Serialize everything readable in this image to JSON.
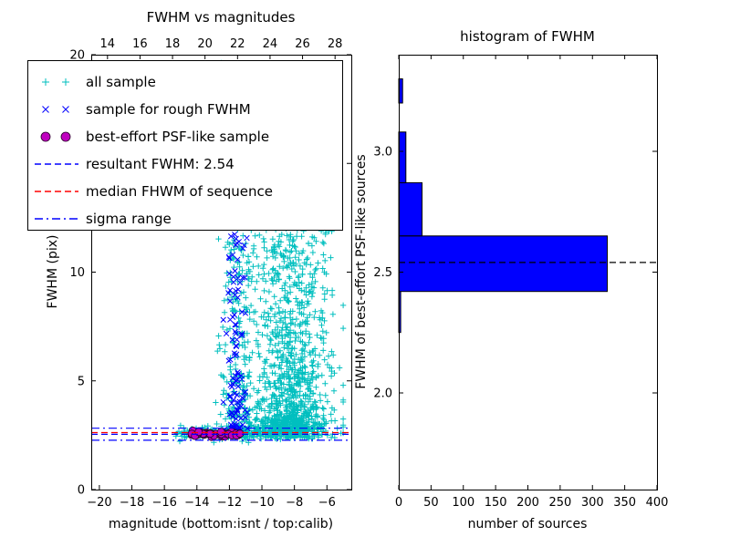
{
  "figure": {
    "background": "#ffffff"
  },
  "chart_data": [
    {
      "type": "scatter",
      "title": "FWHM vs magnitudes",
      "xlabel": "magnitude (bottom:isnt / top:calib)",
      "ylabel": "FWHM (pix)",
      "xlim": [
        -20.5,
        -4.5
      ],
      "ylim": [
        0,
        20
      ],
      "grid": false,
      "xticks": {
        "values": [
          -20,
          -18,
          -16,
          -14,
          -12,
          -10,
          -8,
          -6
        ],
        "labels": [
          "−20",
          "−18",
          "−16",
          "−14",
          "−12",
          "−10",
          "−8",
          "−6"
        ]
      },
      "yticks": {
        "values": [
          0,
          5,
          10,
          15,
          20
        ],
        "labels": [
          "0",
          "5",
          "10",
          "15",
          "20"
        ]
      },
      "top_axis": {
        "lim": [
          13,
          29
        ],
        "ticks": {
          "values": [
            14,
            16,
            18,
            20,
            22,
            24,
            26,
            28
          ],
          "labels": [
            "14",
            "16",
            "18",
            "20",
            "22",
            "24",
            "26",
            "28"
          ]
        }
      },
      "series": [
        {
          "id": "all-sample",
          "name": "all sample",
          "marker": "plus",
          "color": "#00bfbf",
          "clusters": [
            {
              "n": 1400,
              "mag": {
                "dist": "normal",
                "mu": -8.3,
                "sigma": 1.25,
                "clip": [
                  -11.4,
                  -5.0
                ]
              },
              "fwhm": {
                "dist": "powertail",
                "base": 2.3,
                "scale": 15,
                "exp": 2.8,
                "jitter": 0.45,
                "max": 19.8
              }
            },
            {
              "n": 260,
              "mag": {
                "dist": "normal",
                "mu": -11.6,
                "sigma": 0.5,
                "clip": [
                  -13.3,
                  -10.5
                ]
              },
              "fwhm": {
                "dist": "powertail",
                "base": 2.35,
                "scale": 13,
                "exp": 2.0,
                "jitter": 0.3,
                "max": 19.5
              }
            },
            {
              "n": 130,
              "mag": {
                "dist": "uniform",
                "lo": -15.3,
                "hi": -10.3
              },
              "fwhm": {
                "dist": "normal",
                "mu": 2.6,
                "sigma": 0.18,
                "clip": [
                  2.15,
                  3.2
                ]
              }
            },
            {
              "n": 70,
              "mag": {
                "dist": "uniform",
                "lo": -12.6,
                "hi": -5.4
              },
              "fwhm": {
                "dist": "uniform",
                "lo": 9.5,
                "hi": 19.8
              }
            }
          ]
        },
        {
          "id": "rough-fwhm",
          "name": "sample for rough FWHM",
          "marker": "x",
          "color": "#0000ff",
          "clusters": [
            {
              "n": 120,
              "mag": {
                "dist": "normal",
                "mu": -11.6,
                "sigma": 0.33,
                "clip": [
                  -12.7,
                  -10.8
                ]
              },
              "fwhm": {
                "dist": "powertail",
                "base": 2.5,
                "scale": 10.5,
                "exp": 2.1,
                "jitter": 0.25,
                "max": 12.8
              }
            }
          ]
        },
        {
          "id": "psf-like",
          "name": "best-effort PSF-like sample",
          "marker": "circle",
          "color": "#bf00bf",
          "edge": "#2a002a",
          "clusters": [
            {
              "n": 55,
              "mag": {
                "dist": "uniform",
                "lo": -14.35,
                "hi": -11.3
              },
              "fwhm": {
                "dist": "normal",
                "mu": 2.56,
                "sigma": 0.06,
                "clip": [
                  2.42,
                  2.72
                ]
              }
            }
          ]
        }
      ],
      "ref_lines": [
        {
          "id": "resultant-fwhm",
          "label": "resultant FWHM: 2.54",
          "y": 2.54,
          "color": "#0000ff",
          "style": "dashed"
        },
        {
          "id": "median-fwhm",
          "label": "median FHWM of sequence",
          "y": 2.62,
          "color": "#ff0000",
          "style": "dashed"
        },
        {
          "id": "sigma-low",
          "label": "sigma range",
          "y": 2.27,
          "color": "#0000ff",
          "style": "dashdot"
        },
        {
          "id": "sigma-high",
          "label": "sigma range",
          "y": 2.82,
          "color": "#0000ff",
          "style": "dashdot"
        }
      ],
      "legend_items": [
        {
          "label": "all sample",
          "type": "marker",
          "marker": "plus",
          "color": "#00bfbf"
        },
        {
          "label": "sample for rough FWHM",
          "type": "marker",
          "marker": "x",
          "color": "#0000ff"
        },
        {
          "label": "best-effort PSF-like sample",
          "type": "marker",
          "marker": "circle",
          "color": "#bf00bf",
          "edge": "#2a002a"
        },
        {
          "label": "resultant FWHM: 2.54",
          "type": "line",
          "style": "dashed",
          "color": "#0000ff"
        },
        {
          "label": "median FHWM of sequence",
          "type": "line",
          "style": "dashed",
          "color": "#ff0000"
        },
        {
          "label": "sigma range",
          "type": "line",
          "style": "dashdot",
          "color": "#0000ff"
        }
      ],
      "resultant_fwhm": 2.54
    },
    {
      "type": "bar-horizontal",
      "title": "histogram of FWHM",
      "xlabel": "number of sources",
      "ylabel": "FWHM of best-effort PSF-like sources",
      "xlim": [
        0,
        400
      ],
      "ylim": [
        1.6,
        3.4
      ],
      "xticks": {
        "values": [
          0,
          50,
          100,
          150,
          200,
          250,
          300,
          350,
          400
        ],
        "labels": [
          "0",
          "50",
          "100",
          "150",
          "200",
          "250",
          "300",
          "350",
          "400"
        ]
      },
      "yticks": {
        "values": [
          2.0,
          2.5,
          3.0
        ],
        "labels": [
          "2.0",
          "2.5",
          "3.0"
        ]
      },
      "bar_color": "#0000ff",
      "bar_edge": "#000000",
      "bins": [
        {
          "from": 2.25,
          "to": 2.42,
          "count": 3
        },
        {
          "from": 2.42,
          "to": 2.65,
          "count": 323
        },
        {
          "from": 2.65,
          "to": 2.87,
          "count": 36
        },
        {
          "from": 2.87,
          "to": 3.08,
          "count": 11
        },
        {
          "from": 3.2,
          "to": 3.3,
          "count": 6
        }
      ],
      "marker_line": {
        "y": 2.54,
        "color": "#000000",
        "style": "dashed"
      }
    }
  ]
}
